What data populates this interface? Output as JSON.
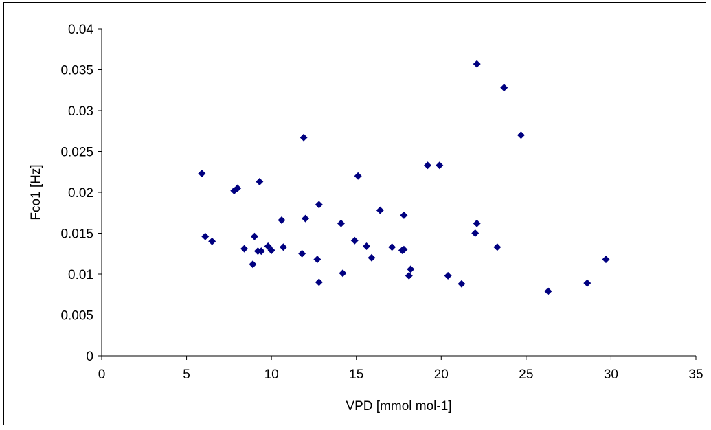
{
  "chart_data": {
    "type": "scatter",
    "title": "",
    "xlabel": "VPD [mmol mol-1]",
    "ylabel": "Fco1 [Hz]",
    "xlim": [
      0,
      35
    ],
    "ylim": [
      0,
      0.04
    ],
    "x_ticks": [
      "0",
      "5",
      "10",
      "15",
      "20",
      "25",
      "30",
      "35"
    ],
    "y_ticks": [
      "0",
      "0.005",
      "0.01",
      "0.015",
      "0.02",
      "0.025",
      "0.03",
      "0.035",
      "0.04"
    ],
    "grid": false,
    "legend": "none",
    "marker_color": "#000080",
    "marker_shape": "diamond",
    "series": [
      {
        "points": [
          [
            5.9,
            0.0223
          ],
          [
            6.1,
            0.0146
          ],
          [
            6.5,
            0.014
          ],
          [
            7.8,
            0.0202
          ],
          [
            8.0,
            0.0205
          ],
          [
            8.4,
            0.0131
          ],
          [
            8.9,
            0.0112
          ],
          [
            9.0,
            0.0146
          ],
          [
            9.2,
            0.0128
          ],
          [
            9.3,
            0.0213
          ],
          [
            9.4,
            0.0128
          ],
          [
            9.8,
            0.0134
          ],
          [
            10.0,
            0.0129
          ],
          [
            10.6,
            0.0166
          ],
          [
            10.7,
            0.0133
          ],
          [
            11.8,
            0.0125
          ],
          [
            11.9,
            0.0267
          ],
          [
            12.0,
            0.0168
          ],
          [
            12.7,
            0.0118
          ],
          [
            12.8,
            0.0185
          ],
          [
            12.8,
            0.009
          ],
          [
            14.1,
            0.0162
          ],
          [
            14.2,
            0.0101
          ],
          [
            14.9,
            0.0141
          ],
          [
            15.1,
            0.022
          ],
          [
            15.6,
            0.0134
          ],
          [
            15.9,
            0.012
          ],
          [
            16.4,
            0.0178
          ],
          [
            17.1,
            0.0133
          ],
          [
            17.7,
            0.0129
          ],
          [
            17.8,
            0.0172
          ],
          [
            17.8,
            0.013
          ],
          [
            18.1,
            0.0098
          ],
          [
            18.2,
            0.0106
          ],
          [
            19.2,
            0.0233
          ],
          [
            19.9,
            0.0233
          ],
          [
            20.4,
            0.0098
          ],
          [
            21.2,
            0.0088
          ],
          [
            22.0,
            0.015
          ],
          [
            22.1,
            0.0357
          ],
          [
            22.1,
            0.0162
          ],
          [
            23.3,
            0.0133
          ],
          [
            23.7,
            0.0328
          ],
          [
            24.7,
            0.027
          ],
          [
            26.3,
            0.0079
          ],
          [
            28.6,
            0.0089
          ],
          [
            29.7,
            0.0118
          ]
        ]
      }
    ]
  }
}
